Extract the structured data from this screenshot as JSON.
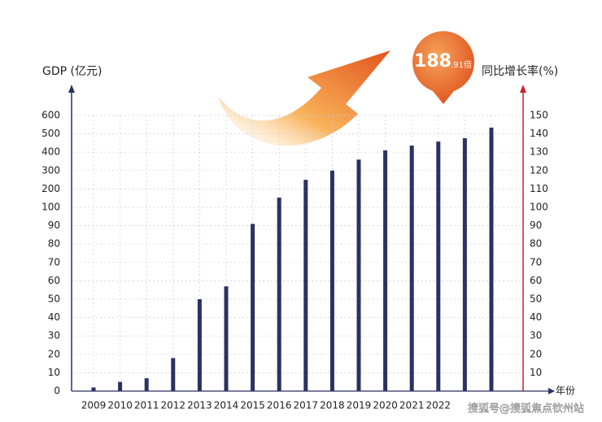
{
  "chart_data": {
    "type": "bar",
    "y_label": "GDP (亿元)",
    "y2_label": "同比增长率(%)",
    "x_label": "年份",
    "badge": {
      "main": "188",
      "sub": ".91倍"
    },
    "watermark": "搜狐号@搜狐焦点钦州站",
    "categories": [
      "2009",
      "2010",
      "2011",
      "2012",
      "2013",
      "2014",
      "2015",
      "2016",
      "2017",
      "2018",
      "2019",
      "2020",
      "2021",
      "2022",
      null,
      null
    ],
    "values": [
      2,
      5,
      7,
      18,
      50,
      57,
      91,
      153,
      250,
      300,
      360,
      410,
      436,
      458,
      476,
      534
    ],
    "color": "#2b3162",
    "ylim": [
      0,
      600
    ],
    "yticks": [
      0,
      10,
      20,
      30,
      40,
      50,
      60,
      70,
      80,
      90,
      100,
      200,
      300,
      400,
      500,
      600
    ],
    "y2lim": [
      0,
      150
    ],
    "y2ticks": [
      10,
      20,
      30,
      40,
      50,
      60,
      70,
      80,
      90,
      100,
      110,
      120,
      130,
      140,
      150
    ],
    "grid": true
  }
}
